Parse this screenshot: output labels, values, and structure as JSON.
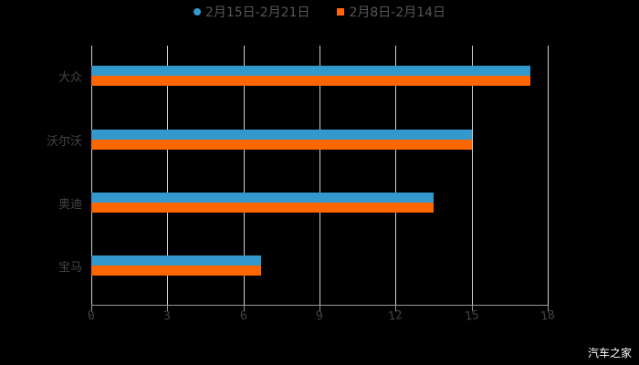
{
  "legend": [
    {
      "label": "2月15日-2月21日",
      "color": "#3399cc",
      "marker": "circle"
    },
    {
      "label": "2月8日-2月14日",
      "color": "#ff6600",
      "marker": "square"
    }
  ],
  "ticks": [
    "0",
    "3",
    "6",
    "9",
    "12",
    "15",
    "18"
  ],
  "watermark": "汽车之家",
  "chart_data": {
    "type": "bar",
    "orientation": "horizontal",
    "title": "",
    "categories": [
      "大众",
      "沃尔沃",
      "奥迪",
      "宝马"
    ],
    "series": [
      {
        "name": "2月15日-2月21日",
        "color": "#3399cc",
        "values": [
          17.3,
          15.0,
          13.5,
          6.7
        ]
      },
      {
        "name": "2月8日-2月14日",
        "color": "#ff6600",
        "values": [
          17.3,
          15.0,
          13.5,
          6.7
        ]
      }
    ],
    "xlabel": "",
    "ylabel": "",
    "xlim": [
      0,
      18
    ],
    "xticks": [
      0,
      3,
      6,
      9,
      12,
      15,
      18
    ],
    "grid": true,
    "legend_position": "top"
  }
}
